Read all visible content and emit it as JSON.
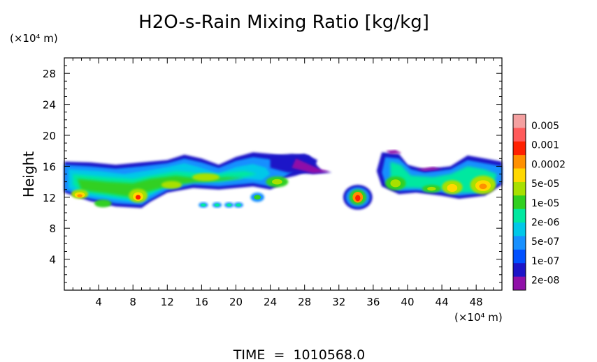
{
  "chart_data": {
    "type": "heatmap",
    "title": "H2O-s-Rain Mixing Ratio [kg/kg]",
    "ylabel": "Height",
    "y_unit": "(×10⁴ m)",
    "x_unit": "(×10⁴ m)",
    "xlim": [
      0,
      51
    ],
    "ylim": [
      0,
      30
    ],
    "x_ticks": [
      4,
      8,
      12,
      16,
      20,
      24,
      28,
      32,
      36,
      40,
      44,
      48
    ],
    "y_ticks": [
      4,
      8,
      12,
      16,
      20,
      24,
      28
    ],
    "colorbar": {
      "labels": [
        "0.005",
        "0.001",
        "0.0002",
        "5e-05",
        "1e-05",
        "2e-06",
        "5e-07",
        "1e-07",
        "2e-08"
      ],
      "colors": [
        "#f4a0a0",
        "#ff5a5a",
        "#ff2000",
        "#ff9000",
        "#ffd800",
        "#a8e000",
        "#30d020",
        "#00e8a0",
        "#00c8e8",
        "#1890ff",
        "#0050ff",
        "#1c14c8",
        "#9010a8"
      ]
    },
    "features": [
      {
        "x": [
          0,
          51
        ],
        "y_band": [
          10.5,
          16.5
        ],
        "note": "cloud band"
      }
    ],
    "footer": "TIME  =  1010568.0"
  }
}
